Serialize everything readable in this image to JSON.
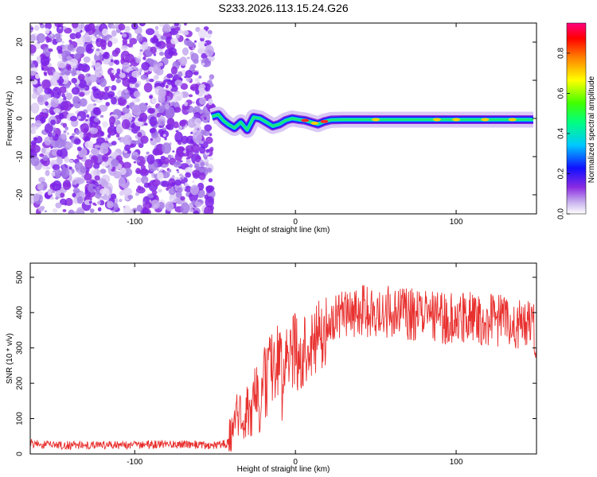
{
  "chart_data": [
    {
      "type": "heatmap",
      "title": "S233.2026.113.15.24.G26",
      "xlabel": "Height of straight line (km)",
      "ylabel": "Frequency (Hz)",
      "xlim": [
        -165,
        150
      ],
      "ylim": [
        -25,
        25
      ],
      "x_ticks": [
        -100,
        0,
        100
      ],
      "y_ticks": [
        -20,
        -10,
        0,
        10,
        20
      ],
      "noise_region_x": [
        -165,
        -52
      ],
      "signal_trace": {
        "x": [
          -52,
          -48,
          -45,
          -42,
          -38,
          -34,
          -30,
          -26,
          -22,
          -18,
          -14,
          -10,
          -6,
          -2,
          2,
          6,
          10,
          14,
          18,
          22,
          30,
          40,
          50,
          60,
          70,
          80,
          90,
          100,
          110,
          120,
          130,
          140,
          148
        ],
        "frequency": [
          0.5,
          1.0,
          -0.5,
          -1.5,
          -2.5,
          -1.0,
          -3.0,
          0.3,
          0.0,
          -1.0,
          -2.0,
          -1.5,
          -0.5,
          0.0,
          -0.3,
          -0.5,
          -1.0,
          -1.5,
          -0.8,
          -0.4,
          -0.3,
          -0.3,
          -0.3,
          -0.3,
          -0.3,
          -0.3,
          -0.3,
          -0.3,
          -0.3,
          -0.3,
          -0.3,
          -0.3,
          -0.3
        ]
      },
      "colorbar": {
        "label": "Normalized spectral amplitude",
        "range": [
          0.0,
          0.95
        ],
        "ticks": [
          0.0,
          0.2,
          0.4,
          0.6,
          0.8
        ]
      }
    },
    {
      "type": "line",
      "xlabel": "Height of straight line (km)",
      "ylabel": "SNR (10 * v/v)",
      "xlim": [
        -165,
        150
      ],
      "ylim": [
        0,
        540
      ],
      "x_ticks": [
        -100,
        0,
        100
      ],
      "y_ticks": [
        0,
        100,
        200,
        300,
        400,
        500
      ],
      "color": "#e8312f",
      "series": [
        {
          "name": "SNR",
          "x": [
            -165,
            -150,
            -130,
            -110,
            -90,
            -70,
            -55,
            -45,
            -40,
            -38,
            -36,
            -34,
            -32,
            -30,
            -28,
            -26,
            -24,
            -22,
            -20,
            -18,
            -15,
            -12,
            -10,
            -8,
            -5,
            -3,
            0,
            2,
            5,
            8,
            10,
            15,
            20,
            25,
            30,
            40,
            50,
            60,
            70,
            80,
            90,
            100,
            110,
            120,
            130,
            140,
            148,
            150
          ],
          "values": [
            30,
            25,
            24,
            25,
            26,
            27,
            25,
            28,
            30,
            70,
            110,
            130,
            90,
            140,
            60,
            170,
            180,
            90,
            230,
            200,
            240,
            230,
            300,
            180,
            270,
            260,
            310,
            240,
            280,
            300,
            290,
            330,
            360,
            380,
            390,
            410,
            400,
            405,
            395,
            390,
            385,
            380,
            385,
            380,
            375,
            370,
            360,
            300
          ]
        }
      ]
    }
  ]
}
